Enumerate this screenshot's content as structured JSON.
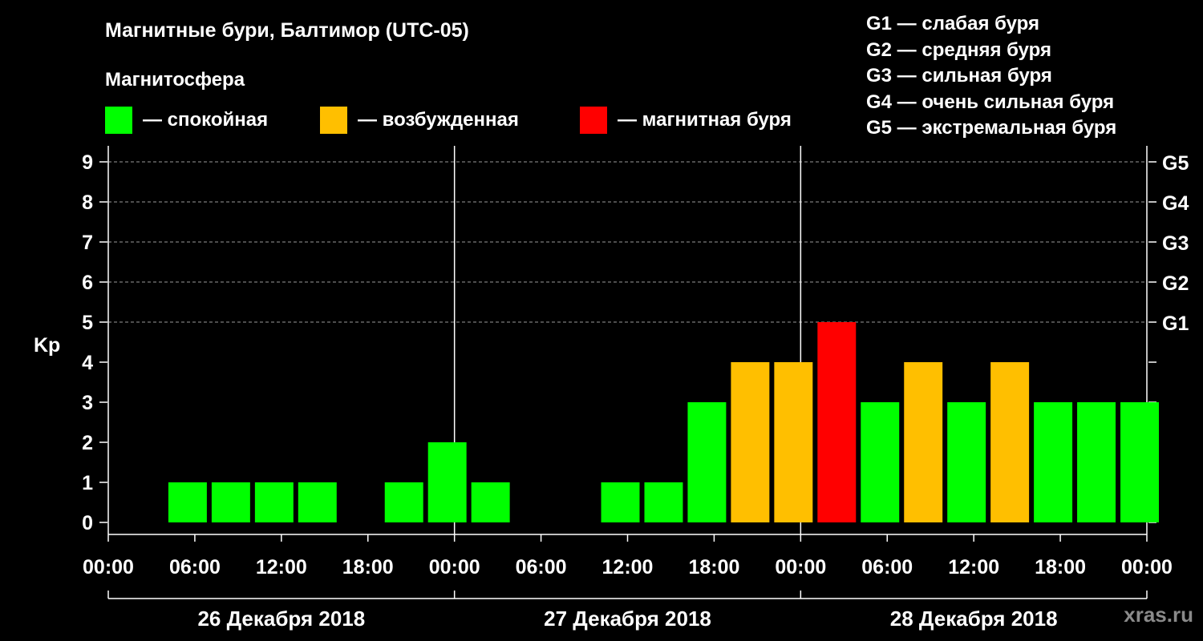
{
  "header": {
    "title": "Магнитные бури, Балтимор (UTC-05)",
    "subtitle": "Магнитосфера"
  },
  "legend": [
    {
      "label": "— спокойная",
      "color": "#00ff00"
    },
    {
      "label": "— возбужденная",
      "color": "#ffbf00"
    },
    {
      "label": "— магнитная буря",
      "color": "#ff0000"
    }
  ],
  "g_scale": [
    "G1 — слабая буря",
    "G2 — средняя буря",
    "G3 — сильная буря",
    "G4 — очень сильная буря",
    "G5 — экстремальная буря"
  ],
  "watermark": "xras.ru",
  "chart_data": {
    "type": "bar",
    "ylabel": "Kp",
    "ylim": [
      0,
      9
    ],
    "y_ticks": [
      "0",
      "1",
      "2",
      "3",
      "4",
      "5",
      "6",
      "7",
      "8",
      "9"
    ],
    "right_ticks": [
      {
        "kp": 5,
        "label": "G1"
      },
      {
        "kp": 6,
        "label": "G2"
      },
      {
        "kp": 7,
        "label": "G3"
      },
      {
        "kp": 8,
        "label": "G4"
      },
      {
        "kp": 9,
        "label": "G5"
      }
    ],
    "x_tick_labels": [
      "00:00",
      "06:00",
      "12:00",
      "18:00",
      "00:00",
      "06:00",
      "12:00",
      "18:00",
      "00:00",
      "06:00",
      "12:00",
      "18:00",
      "00:00"
    ],
    "days": [
      "26 Декабря 2018",
      "27 Декабря 2018",
      "28 Декабря 2018"
    ],
    "interval_hours": 3,
    "start_offset_hours": 1,
    "values": [
      0,
      1,
      1,
      1,
      1,
      0,
      1,
      2,
      1,
      0,
      0,
      1,
      1,
      3,
      4,
      4,
      5,
      3,
      4,
      3,
      4,
      3,
      3,
      3
    ],
    "categories_colors": {
      "quiet": "#00ff00",
      "active": "#ffbf00",
      "storm": "#ff0000"
    },
    "grid": true
  }
}
